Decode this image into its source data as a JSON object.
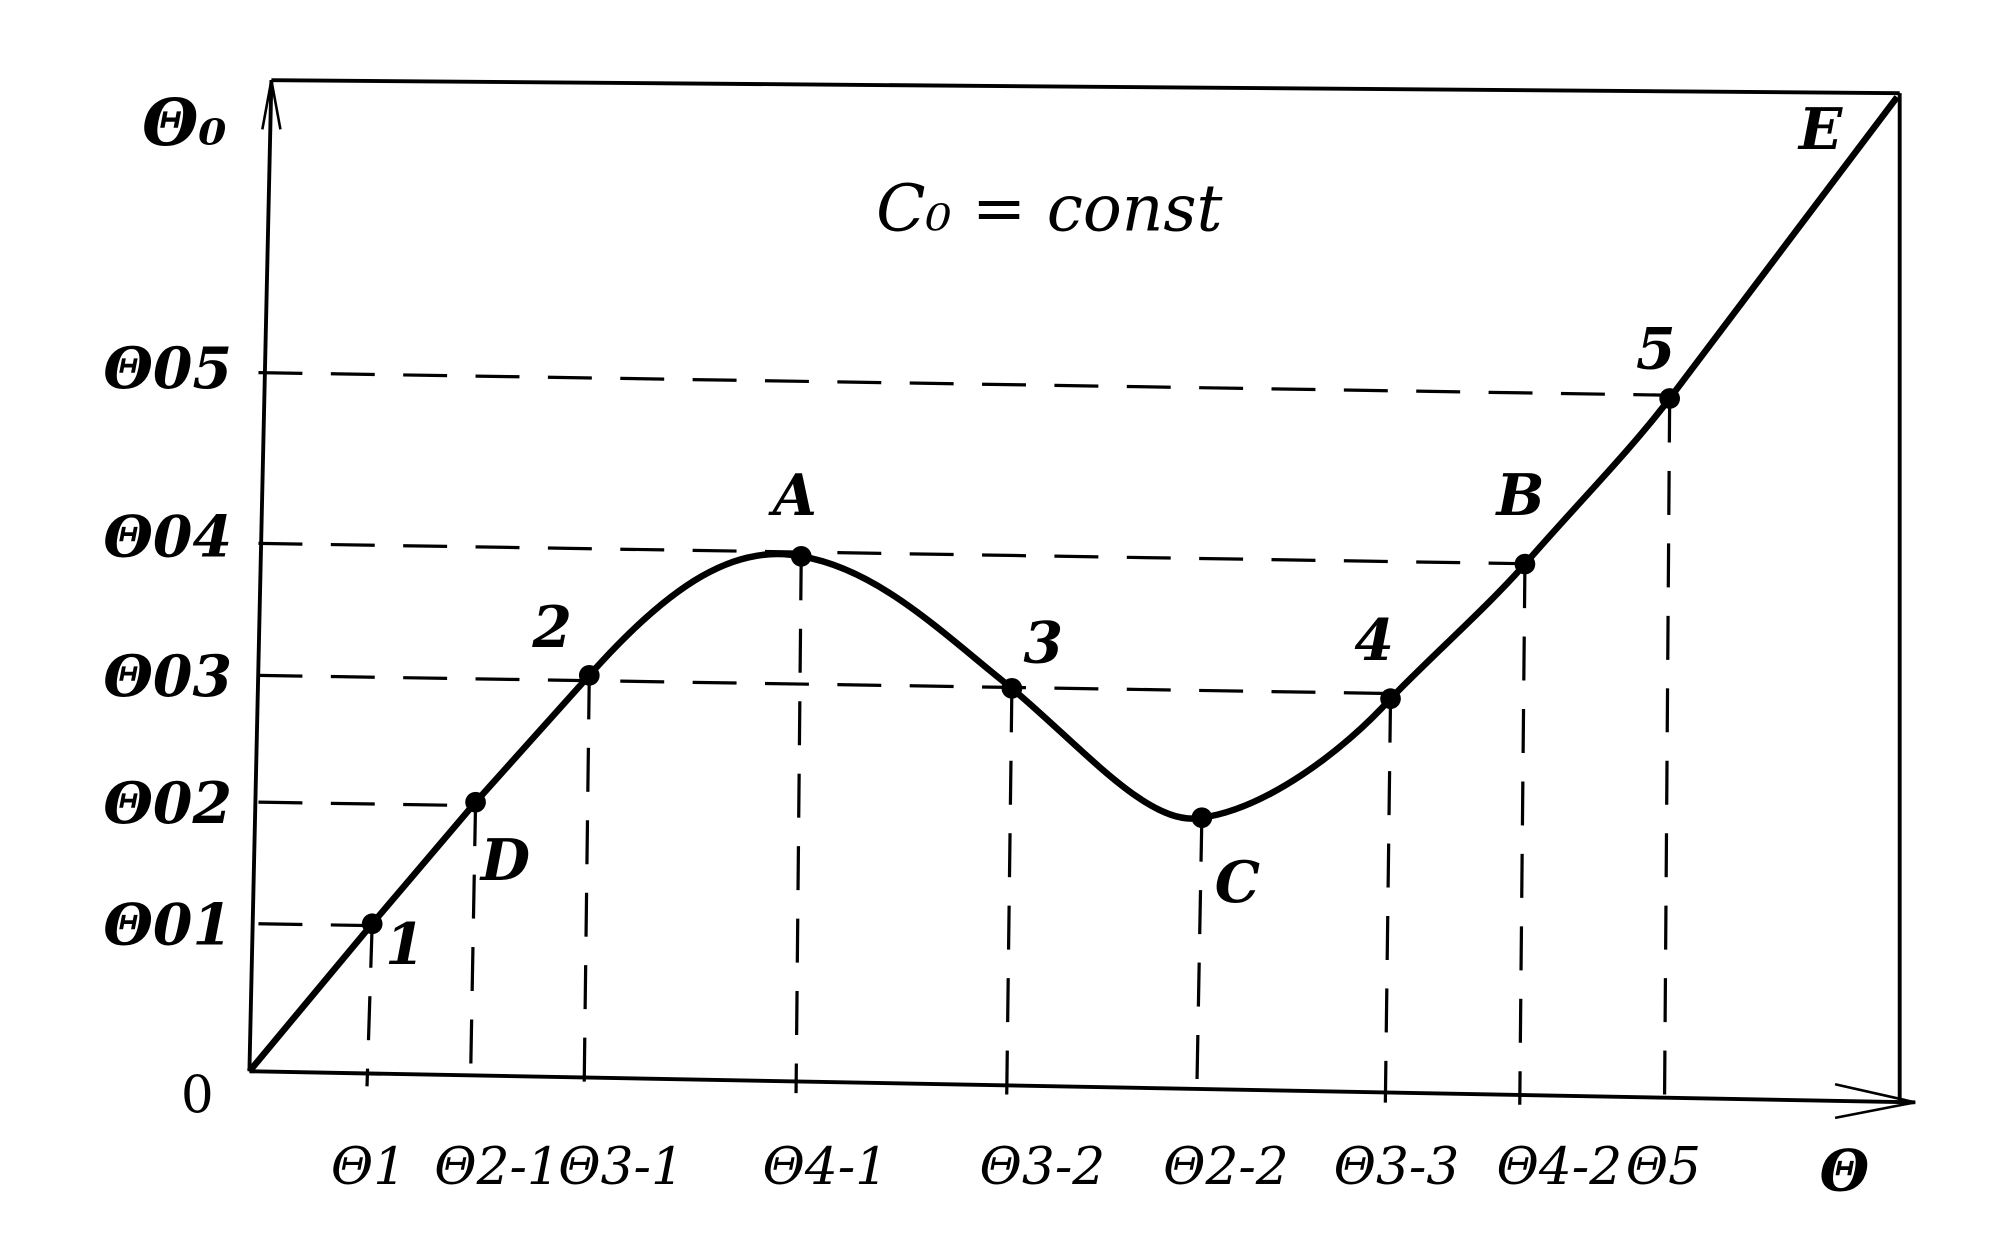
{
  "title": "C₀ = const",
  "y_axis": {
    "label": "Θ₀",
    "ticks": [
      "Θ01",
      "Θ02",
      "Θ03",
      "Θ04",
      "Θ05"
    ]
  },
  "x_axis": {
    "label": "Θ",
    "origin": "0",
    "ticks": [
      "Θ1",
      "Θ2-1",
      "Θ3-1",
      "Θ4-1",
      "Θ3-2",
      "Θ2-2",
      "Θ3-3",
      "Θ4-2",
      "Θ5"
    ]
  },
  "points": [
    {
      "label": "1",
      "x_tick": "Θ1",
      "y_tick": "Θ01"
    },
    {
      "label": "D",
      "x_tick": "Θ2-1",
      "y_tick": "Θ02"
    },
    {
      "label": "2",
      "x_tick": "Θ3-1",
      "y_tick": "Θ03"
    },
    {
      "label": "A",
      "x_tick": "Θ4-1",
      "y_tick": "Θ04"
    },
    {
      "label": "3",
      "x_tick": "Θ3-2",
      "y_tick": "Θ03"
    },
    {
      "label": "C",
      "x_tick": "Θ2-2",
      "y_tick": "Θ02"
    },
    {
      "label": "4",
      "x_tick": "Θ3-3",
      "y_tick": "Θ03"
    },
    {
      "label": "B",
      "x_tick": "Θ4-2",
      "y_tick": "Θ04"
    },
    {
      "label": "5",
      "x_tick": "Θ5",
      "y_tick": "Θ05"
    },
    {
      "label": "E"
    }
  ],
  "colors": {
    "ink": "#000000",
    "background": "#ffffff"
  }
}
